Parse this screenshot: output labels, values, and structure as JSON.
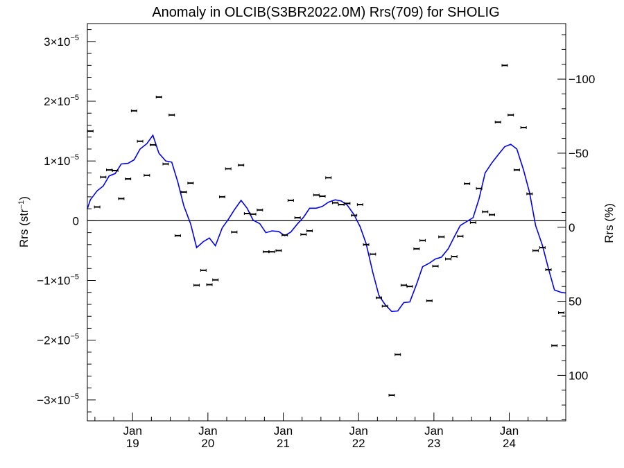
{
  "chart_data": {
    "type": "scatter",
    "title": "Anomaly in OLCIB(S3BR2022.0M) Rrs(709) for SHOLIG",
    "ylabel_left": "Rrs (str",
    "ylabel_left_sup": "−1",
    "ylabel_left_close": ")",
    "ylabel_right": "Rrs (%)",
    "xlim": [
      2018.4,
      2024.75
    ],
    "ylim": [
      -3.35,
      3.3
    ],
    "y_scale_note": "left axis values in units of 1e-5 str^-1",
    "right_axis_ylim": [
      130.7,
      -137.5
    ],
    "grid": false,
    "zero_line": true,
    "x_ticks": [
      {
        "x": 2019.0,
        "label_top": "Jan",
        "label_bottom": "19"
      },
      {
        "x": 2020.0,
        "label_top": "Jan",
        "label_bottom": "20"
      },
      {
        "x": 2021.0,
        "label_top": "Jan",
        "label_bottom": "21"
      },
      {
        "x": 2022.0,
        "label_top": "Jan",
        "label_bottom": "22"
      },
      {
        "x": 2023.0,
        "label_top": "Jan",
        "label_bottom": "23"
      },
      {
        "x": 2024.0,
        "label_top": "Jan",
        "label_bottom": "24"
      }
    ],
    "y_ticks_left": [
      {
        "v": 3,
        "mant": "3×10",
        "exp": "−5"
      },
      {
        "v": 2,
        "mant": "2×10",
        "exp": "−5"
      },
      {
        "v": 1,
        "mant": "1×10",
        "exp": "−5"
      },
      {
        "v": 0,
        "mant": "0",
        "exp": ""
      },
      {
        "v": -1,
        "mant": "−1×10",
        "exp": "−5"
      },
      {
        "v": -2,
        "mant": "−2×10",
        "exp": "−5"
      },
      {
        "v": -3,
        "mant": "−3×10",
        "exp": "−5"
      }
    ],
    "y_ticks_right": [
      {
        "v": -100,
        "label": "−100"
      },
      {
        "v": -50,
        "label": "−50"
      },
      {
        "v": 0,
        "label": "0"
      },
      {
        "v": 50,
        "label": "50"
      },
      {
        "v": 100,
        "label": "100"
      }
    ],
    "series": [
      {
        "kind": "points",
        "color": "#000000",
        "points": [
          [
            2018.44,
            1.5
          ],
          [
            2018.53,
            0.23
          ],
          [
            2018.61,
            0.73
          ],
          [
            2018.69,
            0.85
          ],
          [
            2018.77,
            0.84
          ],
          [
            2018.85,
            0.37
          ],
          [
            2018.94,
            0.7
          ],
          [
            2019.02,
            1.84
          ],
          [
            2019.1,
            1.33
          ],
          [
            2019.19,
            0.76
          ],
          [
            2019.27,
            1.27
          ],
          [
            2019.35,
            2.07
          ],
          [
            2019.44,
            0.95
          ],
          [
            2019.52,
            1.77
          ],
          [
            2019.6,
            -0.25
          ],
          [
            2019.68,
            0.48
          ],
          [
            2019.77,
            0.63
          ],
          [
            2019.85,
            -1.08
          ],
          [
            2019.94,
            -0.83
          ],
          [
            2020.02,
            -1.07
          ],
          [
            2020.1,
            -0.99
          ],
          [
            2020.19,
            0.4
          ],
          [
            2020.27,
            0.87
          ],
          [
            2020.35,
            -0.19
          ],
          [
            2020.44,
            0.93
          ],
          [
            2020.52,
            0.12
          ],
          [
            2020.6,
            0.11
          ],
          [
            2020.69,
            0.18
          ],
          [
            2020.77,
            -0.52
          ],
          [
            2020.85,
            -0.52
          ],
          [
            2020.94,
            -0.5
          ],
          [
            2021.02,
            -0.24
          ],
          [
            2021.1,
            0.34
          ],
          [
            2021.19,
            0.05
          ],
          [
            2021.27,
            -0.23
          ],
          [
            2021.35,
            -0.17
          ],
          [
            2021.44,
            0.43
          ],
          [
            2021.52,
            0.41
          ],
          [
            2021.6,
            0.72
          ],
          [
            2021.69,
            0.3
          ],
          [
            2021.77,
            0.27
          ],
          [
            2021.85,
            0.29
          ],
          [
            2021.94,
            0.09
          ],
          [
            2022.02,
            0.27
          ],
          [
            2022.1,
            -0.4
          ],
          [
            2022.19,
            -0.56
          ],
          [
            2022.27,
            -1.29
          ],
          [
            2022.35,
            -1.43
          ],
          [
            2022.44,
            -2.92
          ],
          [
            2022.52,
            -2.24
          ],
          [
            2022.6,
            -1.08
          ],
          [
            2022.68,
            -1.1
          ],
          [
            2022.77,
            -0.47
          ],
          [
            2022.85,
            -0.33
          ],
          [
            2022.94,
            -1.34
          ],
          [
            2023.02,
            -0.76
          ],
          [
            2023.1,
            -0.27
          ],
          [
            2023.19,
            -0.64
          ],
          [
            2023.27,
            -0.6
          ],
          [
            2023.35,
            -0.26
          ],
          [
            2023.44,
            0.62
          ],
          [
            2023.52,
            -0.03
          ],
          [
            2023.6,
            0.54
          ],
          [
            2023.68,
            0.15
          ],
          [
            2023.77,
            0.1
          ],
          [
            2023.85,
            1.65
          ],
          [
            2023.94,
            2.6
          ],
          [
            2024.02,
            1.77
          ],
          [
            2024.1,
            0.85
          ],
          [
            2024.19,
            1.56
          ],
          [
            2024.27,
            0.45
          ],
          [
            2024.35,
            -0.5
          ],
          [
            2024.44,
            -0.45
          ],
          [
            2024.52,
            -0.82
          ],
          [
            2024.6,
            -2.09
          ],
          [
            2024.69,
            -1.54
          ]
        ]
      },
      {
        "kind": "line",
        "color": "#0000ee",
        "points": [
          [
            2018.4,
            0.2
          ],
          [
            2018.44,
            0.35
          ],
          [
            2018.53,
            0.5
          ],
          [
            2018.61,
            0.58
          ],
          [
            2018.69,
            0.75
          ],
          [
            2018.77,
            0.79
          ],
          [
            2018.85,
            0.95
          ],
          [
            2018.94,
            0.96
          ],
          [
            2019.02,
            1.02
          ],
          [
            2019.1,
            1.2
          ],
          [
            2019.19,
            1.29
          ],
          [
            2019.27,
            1.43
          ],
          [
            2019.35,
            1.13
          ],
          [
            2019.44,
            1.0
          ],
          [
            2019.52,
            0.98
          ],
          [
            2019.6,
            0.65
          ],
          [
            2019.68,
            0.25
          ],
          [
            2019.77,
            -0.05
          ],
          [
            2019.85,
            -0.45
          ],
          [
            2019.94,
            -0.35
          ],
          [
            2020.02,
            -0.29
          ],
          [
            2020.1,
            -0.42
          ],
          [
            2020.19,
            -0.12
          ],
          [
            2020.27,
            0.02
          ],
          [
            2020.35,
            0.18
          ],
          [
            2020.44,
            0.34
          ],
          [
            2020.52,
            0.21
          ],
          [
            2020.6,
            0.01
          ],
          [
            2020.69,
            -0.05
          ],
          [
            2020.77,
            -0.2
          ],
          [
            2020.85,
            -0.17
          ],
          [
            2020.94,
            -0.18
          ],
          [
            2021.02,
            -0.25
          ],
          [
            2021.1,
            -0.19
          ],
          [
            2021.19,
            -0.05
          ],
          [
            2021.27,
            0.06
          ],
          [
            2021.35,
            0.21
          ],
          [
            2021.44,
            0.21
          ],
          [
            2021.52,
            0.24
          ],
          [
            2021.6,
            0.31
          ],
          [
            2021.69,
            0.35
          ],
          [
            2021.77,
            0.33
          ],
          [
            2021.85,
            0.26
          ],
          [
            2021.94,
            0.1
          ],
          [
            2022.02,
            -0.1
          ],
          [
            2022.1,
            -0.38
          ],
          [
            2022.19,
            -0.87
          ],
          [
            2022.27,
            -1.25
          ],
          [
            2022.35,
            -1.4
          ],
          [
            2022.44,
            -1.52
          ],
          [
            2022.52,
            -1.51
          ],
          [
            2022.6,
            -1.37
          ],
          [
            2022.68,
            -1.36
          ],
          [
            2022.77,
            -1.06
          ],
          [
            2022.85,
            -0.77
          ],
          [
            2022.94,
            -0.71
          ],
          [
            2023.02,
            -0.64
          ],
          [
            2023.1,
            -0.61
          ],
          [
            2023.19,
            -0.47
          ],
          [
            2023.27,
            -0.27
          ],
          [
            2023.35,
            -0.08
          ],
          [
            2023.44,
            -0.01
          ],
          [
            2023.52,
            0.05
          ],
          [
            2023.6,
            0.37
          ],
          [
            2023.68,
            0.8
          ],
          [
            2023.77,
            0.97
          ],
          [
            2023.85,
            1.1
          ],
          [
            2023.94,
            1.24
          ],
          [
            2024.02,
            1.28
          ],
          [
            2024.1,
            1.2
          ],
          [
            2024.19,
            0.85
          ],
          [
            2024.27,
            0.47
          ],
          [
            2024.35,
            -0.08
          ],
          [
            2024.44,
            -0.41
          ],
          [
            2024.52,
            -0.8
          ],
          [
            2024.6,
            -1.16
          ],
          [
            2024.69,
            -1.2
          ],
          [
            2024.75,
            -1.21
          ]
        ]
      }
    ]
  }
}
